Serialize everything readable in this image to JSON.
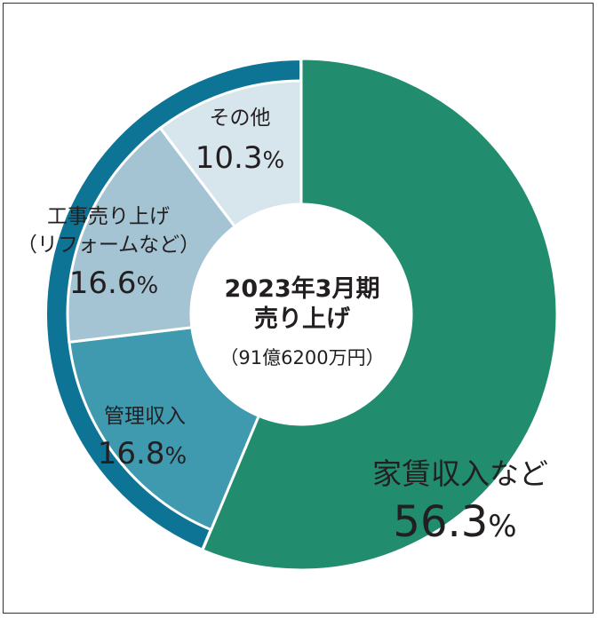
{
  "chart_data": {
    "type": "pie",
    "title": "2023年3月期",
    "subtitle": "売り上げ",
    "note": "（91億6200万円）",
    "slices": [
      {
        "label": "家賃収入など",
        "value": 56.3,
        "value_text": "56.3",
        "pct_sign": "%",
        "color": "#218c6e"
      },
      {
        "label": "管理収入",
        "value": 16.8,
        "value_text": "16.8",
        "pct_sign": "%",
        "color": "#3f9ab0"
      },
      {
        "label": "工事売り上げ",
        "label2": "（リフォームなど）",
        "value": 16.6,
        "value_text": "16.6",
        "pct_sign": "%",
        "color": "#a5c4d3"
      },
      {
        "label": "その他",
        "value": 10.3,
        "value_text": "10.3",
        "pct_sign": "%",
        "color": "#d7e5ec"
      }
    ],
    "outer_band": {
      "color": "#0e7495",
      "covers": [
        "管理収入",
        "工事売り上げ",
        "その他"
      ]
    }
  }
}
